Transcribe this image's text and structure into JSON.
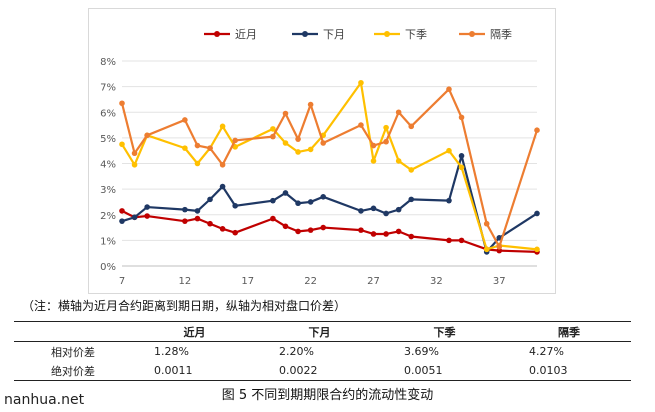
{
  "chart_data": {
    "type": "line",
    "x": [
      7,
      8,
      9,
      12,
      13,
      14,
      15,
      16,
      19,
      20,
      21,
      22,
      23,
      26,
      27,
      28,
      29,
      30,
      33,
      34,
      36,
      37,
      40
    ],
    "xticks": [
      "7",
      "12",
      "17",
      "22",
      "27",
      "32",
      "37"
    ],
    "xtick_values": [
      7,
      12,
      17,
      22,
      27,
      32,
      37
    ],
    "xlim": [
      7,
      40
    ],
    "ylim": [
      0,
      8
    ],
    "yticks": [
      "0%",
      "1%",
      "2%",
      "3%",
      "4%",
      "5%",
      "6%",
      "7%",
      "8%"
    ],
    "grid": true,
    "legend": "top",
    "series": [
      {
        "name": "近月",
        "color": "#c00000",
        "values": [
          2.15,
          1.9,
          1.95,
          1.75,
          1.85,
          1.65,
          1.45,
          1.3,
          1.85,
          1.55,
          1.35,
          1.4,
          1.5,
          1.4,
          1.25,
          1.25,
          1.35,
          1.15,
          1.0,
          1.0,
          0.65,
          0.6,
          0.55
        ]
      },
      {
        "name": "下月",
        "color": "#1f3864",
        "values": [
          1.75,
          1.9,
          2.3,
          2.2,
          2.15,
          2.6,
          3.1,
          2.35,
          2.55,
          2.85,
          2.45,
          2.5,
          2.7,
          2.15,
          2.25,
          2.05,
          2.2,
          2.6,
          2.55,
          4.3,
          0.55,
          1.1,
          2.05
        ]
      },
      {
        "name": "下季",
        "color": "#ffc000",
        "values": [
          4.75,
          3.95,
          5.1,
          4.6,
          4.0,
          4.6,
          5.45,
          4.65,
          5.35,
          4.8,
          4.45,
          4.55,
          5.1,
          7.15,
          4.1,
          5.4,
          4.1,
          3.75,
          4.5,
          3.85,
          0.65,
          0.8,
          0.65
        ]
      },
      {
        "name": "隔季",
        "color": "#ed7d31",
        "values": [
          6.35,
          4.4,
          5.1,
          5.7,
          4.7,
          4.6,
          3.95,
          4.9,
          5.05,
          5.95,
          4.95,
          6.3,
          4.8,
          5.5,
          4.7,
          4.85,
          6.0,
          5.45,
          6.9,
          5.8,
          1.65,
          0.75,
          5.3
        ]
      }
    ]
  },
  "note": "（注：横轴为近月合约距离到期日期，纵轴为相对盘口价差）",
  "table": {
    "headers": [
      "",
      "近月",
      "下月",
      "下季",
      "隔季"
    ],
    "rows": [
      {
        "label": "相对价差",
        "values": [
          "1.28%",
          "2.20%",
          "3.69%",
          "4.27%"
        ]
      },
      {
        "label": "绝对价差",
        "values": [
          "0.0011",
          "0.0022",
          "0.0051",
          "0.0103"
        ]
      }
    ]
  },
  "caption": "图 5 不同到期期限合约的流动性变动",
  "watermark": "nanhua.net"
}
